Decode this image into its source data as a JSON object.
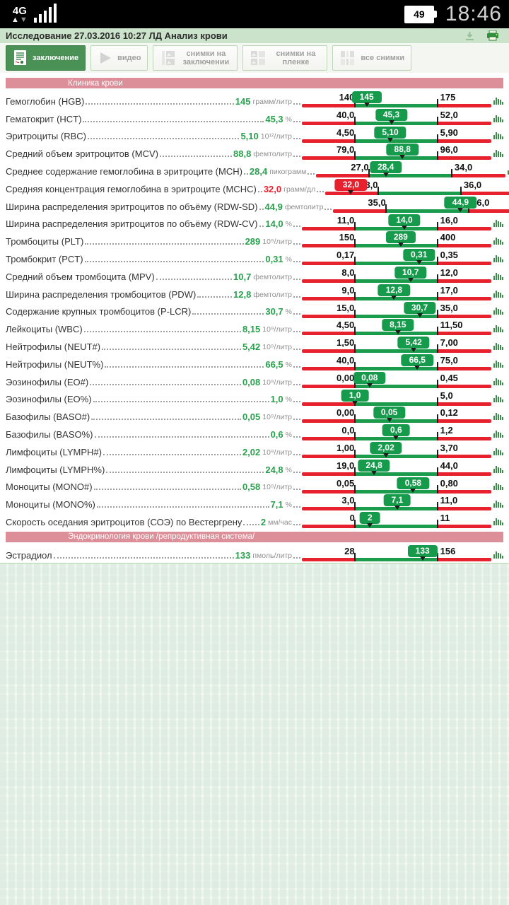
{
  "status_bar": {
    "network": "4G",
    "battery_percent": "49",
    "time": "18:46"
  },
  "header": {
    "title": "Исследование 27.03.2016 10:27 ЛД Анализ крови"
  },
  "icons": {
    "header": [
      "download-icon",
      "printer-icon"
    ],
    "row": "histogram-icon",
    "toolbar": [
      "report-document-icon",
      "play-icon",
      "report-images-icon",
      "film-images-icon",
      "all-images-icon"
    ]
  },
  "colors": {
    "active_button_green": "#4a9156",
    "badge_green": "#169a4b",
    "alert_red": "#e8212e",
    "section_pink": "#dd8f99",
    "header_green": "#cbe3ca"
  },
  "toolbar": {
    "buttons": [
      {
        "label": "заключение",
        "active": true
      },
      {
        "label": "видео",
        "active": false
      },
      {
        "label": "снимки на заключении",
        "active": false
      },
      {
        "label": "снимки на пленке",
        "active": false
      },
      {
        "label": "все снимки",
        "active": false
      }
    ]
  },
  "sections": [
    {
      "title": "Клиника крови",
      "rows": [
        {
          "name": "Гемоглобин (HGB)",
          "value": "145",
          "unit": "грамм/литр",
          "min": "140",
          "max": "175"
        },
        {
          "name": "Гематокрит (HCT)",
          "value": "45,3",
          "unit": "%",
          "min": "40,0",
          "max": "52,0"
        },
        {
          "name": "Эритроциты (RBC)",
          "value": "5,10",
          "unit": "10¹²/литр",
          "min": "4,50",
          "max": "5,90"
        },
        {
          "name": "Средний объем эритроцитов (MCV)",
          "value": "88,8",
          "unit": "фемтолитр",
          "min": "79,0",
          "max": "96,0"
        },
        {
          "name": "Среднее содержание гемоглобина в эритроците (MCH)",
          "value": "28,4",
          "unit": "пикограмм",
          "min": "27,0",
          "max": "34,0"
        },
        {
          "name": "Средняя концентрация гемоглобина в эритроците (MCHC)",
          "value": "32,0",
          "unit": "грамм/дл",
          "min": "33,0",
          "max": "36,0"
        },
        {
          "name": "Ширина распределения эритроцитов по объёму (RDW-SD)",
          "value": "44,9",
          "unit": "фемтолитр",
          "min": "35,0",
          "max": "46,0"
        },
        {
          "name": "Ширина распределения эритроцитов по объёму (RDW-CV)",
          "value": "14,0",
          "unit": "%",
          "min": "11,0",
          "max": "16,0"
        },
        {
          "name": "Тромбоциты (PLT)",
          "value": "289",
          "unit": "10⁹/литр",
          "min": "150",
          "max": "400"
        },
        {
          "name": "Тромбокрит (PCT)",
          "value": "0,31",
          "unit": "%",
          "min": "0,17",
          "max": "0,35"
        },
        {
          "name": "Средний объем тромбоцита (MPV)",
          "value": "10,7",
          "unit": "фемтолитр",
          "min": "8,0",
          "max": "12,0"
        },
        {
          "name": "Ширина распределения тромбоцитов (PDW)",
          "value": "12,8",
          "unit": "фемтолитр",
          "min": "9,0",
          "max": "17,0"
        },
        {
          "name": "Содержание крупных тромбоцитов (P-LCR)",
          "value": "30,7",
          "unit": "%",
          "min": "15,0",
          "max": "35,0"
        },
        {
          "name": "Лейкоциты (WBC)",
          "value": "8,15",
          "unit": "10⁹/литр",
          "min": "4,50",
          "max": "11,50"
        },
        {
          "name": "Нейтрофилы (NEUT#)",
          "value": "5,42",
          "unit": "10⁹/литр",
          "min": "1,50",
          "max": "7,00"
        },
        {
          "name": "Нейтрофилы (NEUT%)",
          "value": "66,5",
          "unit": "%",
          "min": "40,0",
          "max": "75,0"
        },
        {
          "name": "Эозинофилы (EO#)",
          "value": "0,08",
          "unit": "10⁹/литр",
          "min": "0,00",
          "max": "0,45"
        },
        {
          "name": "Эозинофилы (EO%)",
          "value": "1,0",
          "unit": "%",
          "min": "1,0",
          "max": "5,0"
        },
        {
          "name": "Базофилы (BASO#)",
          "value": "0,05",
          "unit": "10⁹/литр",
          "min": "0,00",
          "max": "0,12"
        },
        {
          "name": "Базофилы (BASO%)",
          "value": "0,6",
          "unit": "%",
          "min": "0,0",
          "max": "1,2"
        },
        {
          "name": "Лимфоциты (LYMPH#)",
          "value": "2,02",
          "unit": "10⁹/литр",
          "min": "1,00",
          "max": "3,70"
        },
        {
          "name": "Лимфоциты (LYMPH%)",
          "value": "24,8",
          "unit": "%",
          "min": "19,0",
          "max": "44,0"
        },
        {
          "name": "Моноциты (MONO#)",
          "value": "0,58",
          "unit": "10⁹/литр",
          "min": "0,05",
          "max": "0,80"
        },
        {
          "name": "Моноциты (MONO%)",
          "value": "7,1",
          "unit": "%",
          "min": "3,0",
          "max": "11,0"
        },
        {
          "name": "Скорость оседания эритроцитов (СОЭ) по Вестергрену",
          "value": "2",
          "unit": "мм/час",
          "min": "0",
          "max": "11"
        }
      ]
    },
    {
      "title": "Эндокринология крови /репродуктивная система/",
      "rows": [
        {
          "name": "Эстрадиол",
          "value": "133",
          "unit": "пмоль/литр",
          "min": "28",
          "max": "156"
        }
      ]
    }
  ]
}
